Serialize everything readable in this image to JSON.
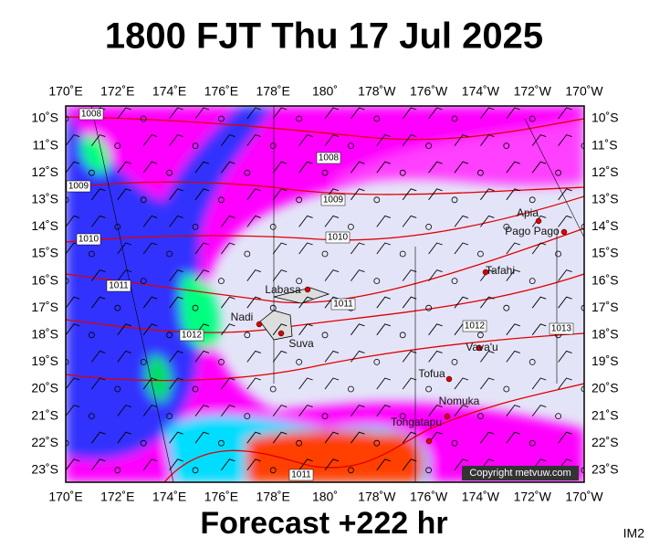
{
  "header": {
    "title": "1800 FJT Thu 17 Jul 2025"
  },
  "axes": {
    "longitudes": [
      "170˚E",
      "172˚E",
      "174˚E",
      "176˚E",
      "178˚E",
      "180˚",
      "178˚W",
      "176˚W",
      "174˚W",
      "172˚W",
      "170˚W"
    ],
    "latitudes": [
      "10˚S",
      "11˚S",
      "12˚S",
      "13˚S",
      "14˚S",
      "15˚S",
      "16˚S",
      "17˚S",
      "18˚S",
      "19˚S",
      "20˚S",
      "21˚S",
      "22˚S",
      "23˚S"
    ]
  },
  "places": [
    "Apia",
    "Pago Pago",
    "Tafahi",
    "Labasa",
    "Nadi",
    "Suva",
    "Vava'u",
    "Tofua",
    "Nomuka",
    "Tongatapu"
  ],
  "isobars": [
    "1008",
    "1009",
    "1010",
    "1011",
    "1012",
    "1008",
    "1009",
    "1010",
    "1011",
    "1012",
    "1013",
    "1011"
  ],
  "copyright": "Copyright metvuw.com",
  "footer": {
    "forecast": "Forecast +222 hr",
    "image_id": "IM2"
  }
}
